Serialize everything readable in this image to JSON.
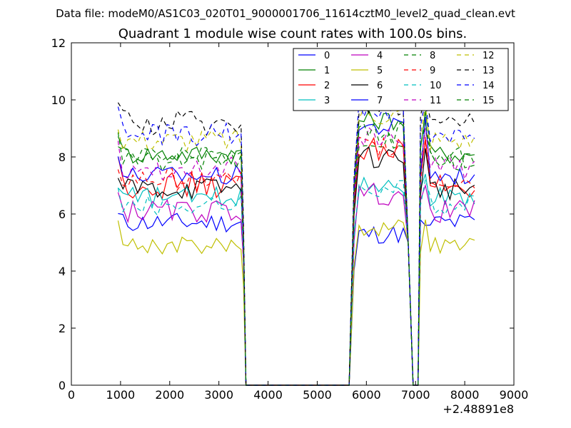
{
  "header": "Data file: modeM0/AS1C03_020T01_9000001706_11614cztM0_level2_quad_clean.evt",
  "chart_data": {
    "type": "line",
    "title": "Quadrant 1 module wise count rates with 100.0s bins.",
    "xlabel": "",
    "ylabel": "",
    "x_offset_label": "+2.48891e8",
    "xlim": [
      0,
      9000
    ],
    "ylim": [
      0,
      12
    ],
    "xticks": [
      0,
      1000,
      2000,
      3000,
      4000,
      5000,
      6000,
      7000,
      8000,
      9000
    ],
    "yticks": [
      0,
      2,
      4,
      6,
      8,
      10,
      12
    ],
    "legend_position": "top-right",
    "legend_columns": 4,
    "segments": [
      {
        "x0": 950,
        "x1": 3450
      },
      {
        "x0": 5750,
        "x1": 6750
      },
      {
        "x0": 7100,
        "x1": 8250
      }
    ],
    "series": [
      {
        "name": "0",
        "color": "#0000ff",
        "dash": "solid",
        "base": 5.7,
        "amp": 0.35,
        "drop": 5.0,
        "rise": 5.6
      },
      {
        "name": "1",
        "color": "#008000",
        "dash": "solid",
        "base": 8.1,
        "amp": 0.35,
        "drop": 5.6,
        "rise": 9.6
      },
      {
        "name": "2",
        "color": "#ff0000",
        "dash": "solid",
        "base": 7.0,
        "amp": 0.45,
        "drop": 5.2,
        "rise": 8.6
      },
      {
        "name": "3",
        "color": "#00bfbf",
        "dash": "solid",
        "base": 6.6,
        "amp": 0.35,
        "drop": 5.0,
        "rise": 7.4
      },
      {
        "name": "4",
        "color": "#bf00bf",
        "dash": "solid",
        "base": 6.1,
        "amp": 0.4,
        "drop": 4.8,
        "rise": 7.0
      },
      {
        "name": "5",
        "color": "#bfbf00",
        "dash": "solid",
        "base": 4.9,
        "amp": 0.3,
        "drop": 3.9,
        "rise": 5.8
      },
      {
        "name": "6",
        "color": "#000000",
        "dash": "solid",
        "base": 6.9,
        "amp": 0.4,
        "drop": 5.5,
        "rise": 8.3
      },
      {
        "name": "7",
        "color": "#0000ff",
        "dash": "solid",
        "base": 7.4,
        "amp": 0.35,
        "drop": 5.5,
        "rise": 9.4
      },
      {
        "name": "8",
        "color": "#008000",
        "dash": "dashed",
        "base": 7.9,
        "amp": 0.4,
        "drop": 5.6,
        "rise": 9.0
      },
      {
        "name": "9",
        "color": "#ff0000",
        "dash": "dashed",
        "base": 7.2,
        "amp": 0.4,
        "drop": 5.4,
        "rise": 8.7
      },
      {
        "name": "10",
        "color": "#00bfbf",
        "dash": "dashed",
        "base": 6.3,
        "amp": 0.35,
        "drop": 5.0,
        "rise": 7.2
      },
      {
        "name": "11",
        "color": "#bf00bf",
        "dash": "dashed",
        "base": 7.6,
        "amp": 0.4,
        "drop": 5.6,
        "rise": 9.0
      },
      {
        "name": "12",
        "color": "#bfbf00",
        "dash": "dashed",
        "base": 8.6,
        "amp": 0.4,
        "drop": 6.2,
        "rise": 9.8
      },
      {
        "name": "13",
        "color": "#000000",
        "dash": "dashed",
        "base": 9.2,
        "amp": 0.45,
        "drop": 6.3,
        "rise": 10.2
      },
      {
        "name": "14",
        "color": "#0000ff",
        "dash": "dashed",
        "base": 8.8,
        "amp": 0.4,
        "drop": 6.0,
        "rise": 10.0
      },
      {
        "name": "15",
        "color": "#008000",
        "dash": "dashed",
        "base": 8.0,
        "amp": 0.4,
        "drop": 5.6,
        "rise": 9.2
      }
    ]
  }
}
